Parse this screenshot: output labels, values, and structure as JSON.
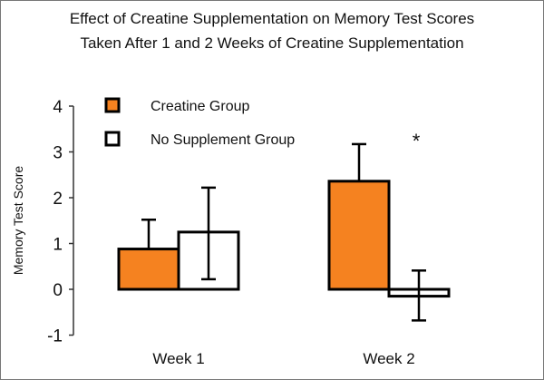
{
  "chart_data": {
    "type": "bar",
    "title": [
      "Effect of Creatine Supplementation on Memory Test Scores",
      "Taken After 1 and 2 Weeks of Creatine Supplementation"
    ],
    "xlabel": "",
    "ylabel": "Memory Test Score",
    "ylim": [
      -1,
      4
    ],
    "yticks": [
      "4",
      "3",
      "2",
      "1",
      "0",
      "-1"
    ],
    "categories": [
      "Week 1",
      "Week 2"
    ],
    "grid": false,
    "legend_placement": "top-left",
    "series": [
      {
        "name": "Creatine Group",
        "color": "#F58220",
        "values": [
          0.88,
          2.36
        ],
        "error_upper": [
          1.52,
          3.17
        ]
      },
      {
        "name": "No Supplement Group",
        "color": "#FFFFFF",
        "values": [
          1.25,
          -0.15
        ],
        "error_upper": [
          2.22,
          0.41
        ],
        "error_lower": [
          0.22,
          -0.68
        ]
      }
    ],
    "annotations": [
      {
        "text": "*",
        "category": "Week 2"
      }
    ]
  }
}
